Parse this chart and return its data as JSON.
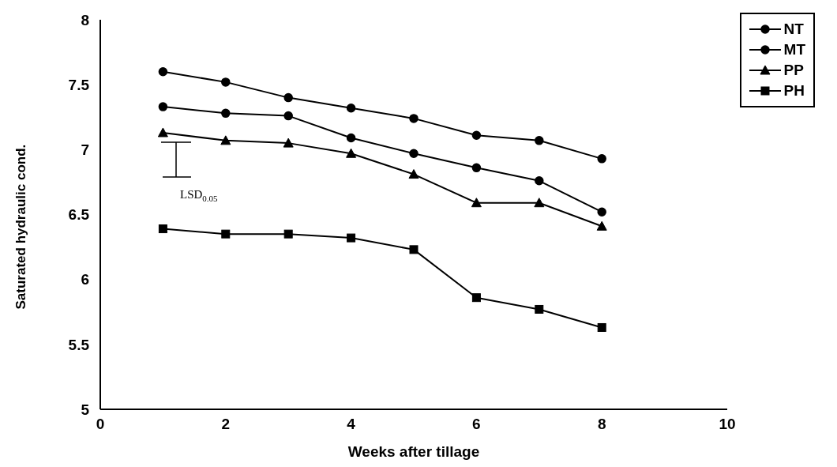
{
  "chart_data": {
    "type": "line",
    "xlabel": "Weeks after tillage",
    "ylabel": "Saturated hydraulic cond.",
    "x": [
      1,
      2,
      3,
      4,
      5,
      6,
      7,
      8
    ],
    "series": [
      {
        "name": "NT",
        "color": "#000000",
        "marker": "circle",
        "values": [
          7.6,
          7.52,
          7.4,
          7.32,
          7.24,
          7.11,
          7.07,
          6.93
        ]
      },
      {
        "name": "MT",
        "color": "#000000",
        "marker": "circle",
        "values": [
          7.33,
          7.28,
          7.26,
          7.09,
          6.97,
          6.86,
          6.76,
          6.52
        ]
      },
      {
        "name": "PP",
        "color": "#000000",
        "marker": "triangle",
        "values": [
          7.13,
          7.07,
          7.05,
          6.97,
          6.81,
          6.59,
          6.59,
          6.41
        ]
      },
      {
        "name": "PH",
        "color": "#000000",
        "marker": "square",
        "values": [
          6.39,
          6.35,
          6.35,
          6.32,
          6.23,
          5.86,
          5.77,
          5.63
        ]
      }
    ],
    "annotations": [
      "LSD$_{0.05}$"
    ],
    "xlim": [
      0,
      10
    ],
    "xticks": [
      0,
      2,
      4,
      6,
      8,
      10
    ],
    "ylim": [
      5,
      8
    ],
    "yticks": [
      5,
      5.5,
      6,
      6.5,
      7,
      7.5,
      8
    ],
    "grid": false,
    "legend": "top right",
    "line_style": "solid"
  }
}
